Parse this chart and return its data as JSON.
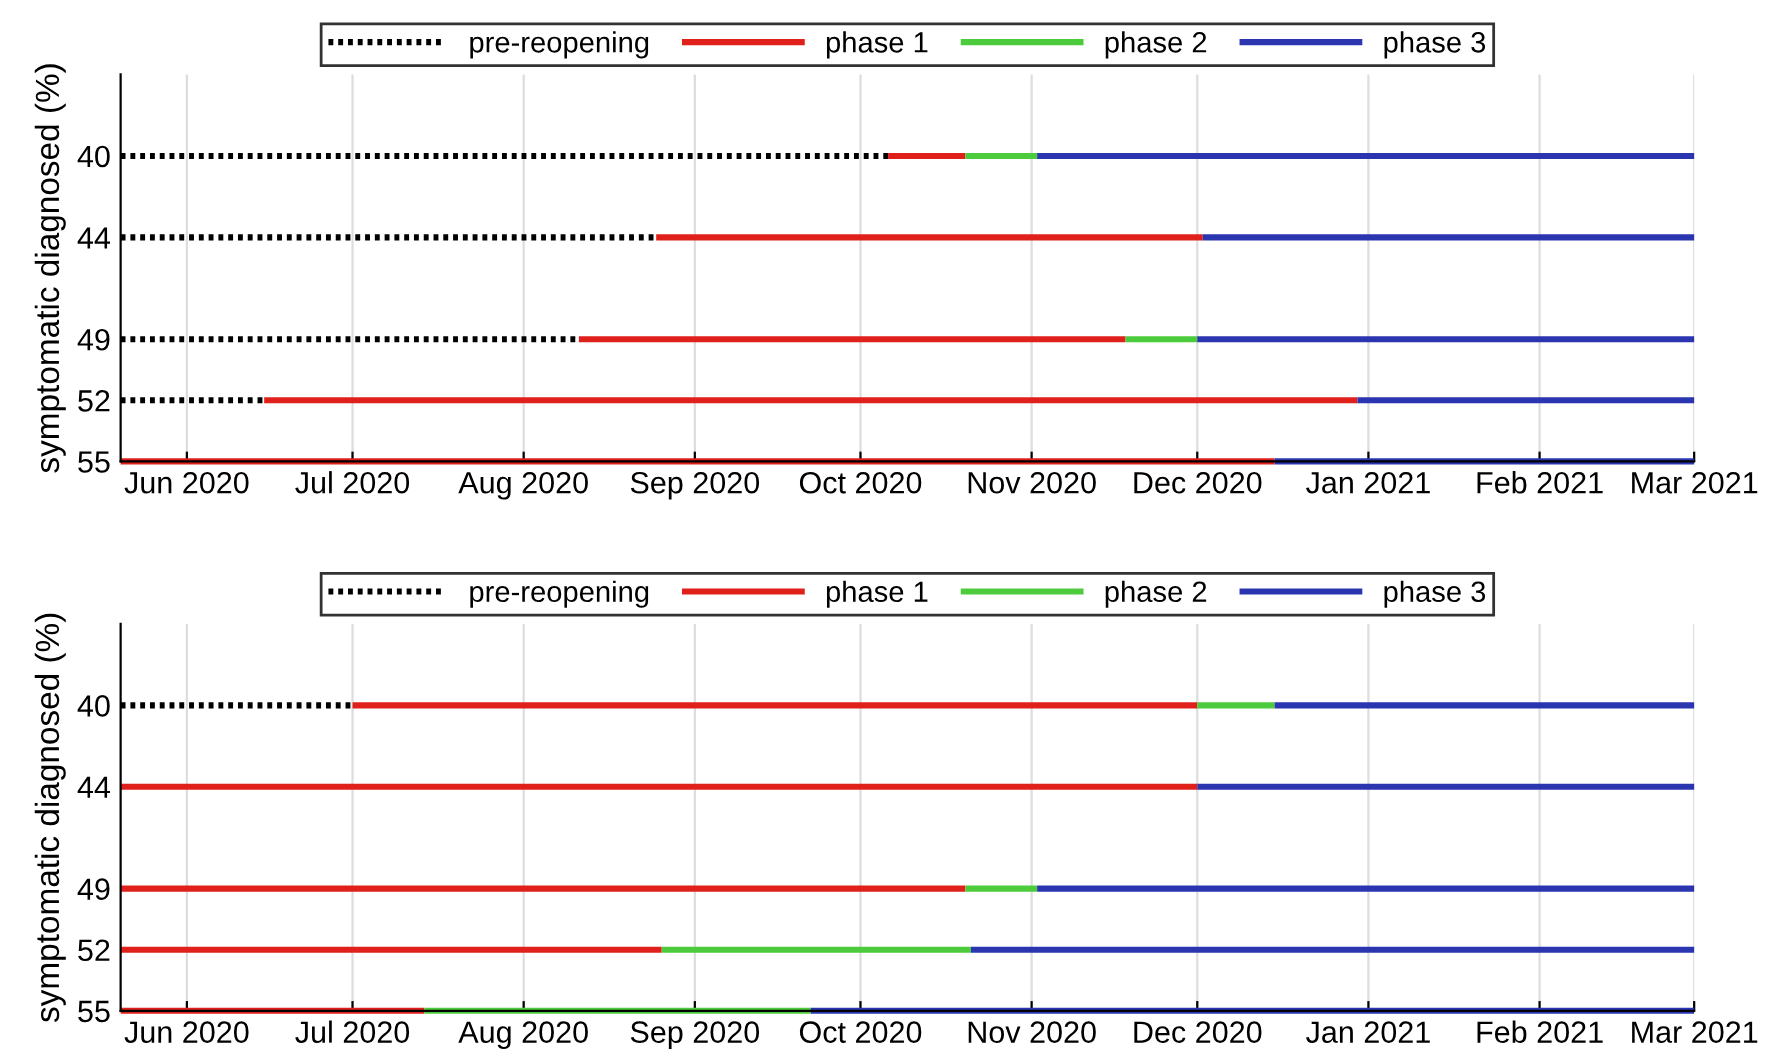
{
  "chart_data": [
    {
      "type": "line",
      "ylabel": "symptomatic diagnosed (%)",
      "xlim": [
        "2020-05-20",
        "2021-03-01"
      ],
      "ylim": [
        55,
        36
      ],
      "yticks": [
        40,
        44,
        49,
        52,
        55
      ],
      "xticks": [
        {
          "value": "2020-06-01",
          "label": "Jun 2020"
        },
        {
          "value": "2020-07-01",
          "label": "Jul 2020"
        },
        {
          "value": "2020-08-01",
          "label": "Aug 2020"
        },
        {
          "value": "2020-09-01",
          "label": "Sep 2020"
        },
        {
          "value": "2020-10-01",
          "label": "Oct 2020"
        },
        {
          "value": "2020-11-01",
          "label": "Nov 2020"
        },
        {
          "value": "2020-12-01",
          "label": "Dec 2020"
        },
        {
          "value": "2021-01-01",
          "label": "Jan 2021"
        },
        {
          "value": "2021-02-01",
          "label": "Feb 2021"
        },
        {
          "value": "2021-03-01",
          "label": "Mar 2021"
        }
      ],
      "grid": "x",
      "legend": "top",
      "series": [
        {
          "name": "pre-reopening",
          "color": "#000000",
          "line_style": "dotted",
          "x": [
            "2020-05-20",
            "2020-10-06",
            null,
            "2020-05-20",
            "2020-08-25",
            null,
            "2020-05-20",
            "2020-08-11",
            null,
            "2020-05-20",
            "2020-06-15"
          ],
          "values": [
            40,
            40,
            null,
            44,
            44,
            null,
            49,
            49,
            null,
            52,
            52
          ]
        },
        {
          "name": "phase 1",
          "color": "#e0201b",
          "line_style": "solid",
          "x": [
            "2020-10-06",
            "2020-10-20",
            null,
            "2020-08-25",
            "2020-12-02",
            null,
            "2020-08-11",
            "2020-11-18",
            null,
            "2020-06-15",
            "2020-12-30",
            null,
            "2020-05-20",
            "2020-12-15"
          ],
          "values": [
            40,
            40,
            null,
            44,
            44,
            null,
            49,
            49,
            null,
            52,
            52,
            null,
            55,
            55
          ]
        },
        {
          "name": "phase 2",
          "color": "#4ccc3c",
          "line_style": "solid",
          "x": [
            "2020-10-20",
            "2020-11-02",
            null,
            "2020-11-18",
            "2020-12-01"
          ],
          "values": [
            40,
            40,
            null,
            49,
            49
          ]
        },
        {
          "name": "phase 3",
          "color": "#2b35b0",
          "line_style": "solid",
          "x": [
            "2020-11-02",
            "2021-03-01",
            null,
            "2020-12-02",
            "2021-03-01",
            null,
            "2020-12-01",
            "2021-03-01",
            null,
            "2020-12-30",
            "2021-03-01",
            null,
            "2020-12-15",
            "2021-03-01"
          ],
          "values": [
            40,
            40,
            null,
            44,
            44,
            null,
            49,
            49,
            null,
            52,
            52,
            null,
            55,
            55
          ]
        }
      ]
    },
    {
      "type": "line",
      "ylabel": "symptomatic diagnosed (%)",
      "xlim": [
        "2020-05-20",
        "2021-03-01"
      ],
      "ylim": [
        55,
        36
      ],
      "yticks": [
        40,
        44,
        49,
        52,
        55
      ],
      "xticks": [
        {
          "value": "2020-06-01",
          "label": "Jun 2020"
        },
        {
          "value": "2020-07-01",
          "label": "Jul 2020"
        },
        {
          "value": "2020-08-01",
          "label": "Aug 2020"
        },
        {
          "value": "2020-09-01",
          "label": "Sep 2020"
        },
        {
          "value": "2020-10-01",
          "label": "Oct 2020"
        },
        {
          "value": "2020-11-01",
          "label": "Nov 2020"
        },
        {
          "value": "2020-12-01",
          "label": "Dec 2020"
        },
        {
          "value": "2021-01-01",
          "label": "Jan 2021"
        },
        {
          "value": "2021-02-01",
          "label": "Feb 2021"
        },
        {
          "value": "2021-03-01",
          "label": "Mar 2021"
        }
      ],
      "grid": "x",
      "legend": "top",
      "series": [
        {
          "name": "pre-reopening",
          "color": "#000000",
          "line_style": "dotted",
          "x": [
            "2020-05-20",
            "2020-07-01"
          ],
          "values": [
            40,
            40
          ]
        },
        {
          "name": "phase 1",
          "color": "#e0201b",
          "line_style": "solid",
          "x": [
            "2020-07-01",
            "2020-12-01",
            null,
            "2020-05-20",
            "2020-12-01",
            null,
            "2020-05-20",
            "2020-10-20",
            null,
            "2020-05-20",
            "2020-08-26",
            null,
            "2020-05-20",
            "2020-07-14"
          ],
          "values": [
            40,
            40,
            null,
            44,
            44,
            null,
            49,
            49,
            null,
            52,
            52,
            null,
            55,
            55
          ]
        },
        {
          "name": "phase 2",
          "color": "#4ccc3c",
          "line_style": "solid",
          "x": [
            "2020-12-01",
            "2020-12-15",
            null,
            "2020-10-20",
            "2020-11-02",
            null,
            "2020-08-26",
            "2020-10-21",
            null,
            "2020-07-14",
            "2020-09-22"
          ],
          "values": [
            40,
            40,
            null,
            49,
            49,
            null,
            52,
            52,
            null,
            55,
            55
          ]
        },
        {
          "name": "phase 3",
          "color": "#2b35b0",
          "line_style": "solid",
          "x": [
            "2020-12-15",
            "2021-03-01",
            null,
            "2020-12-01",
            "2021-03-01",
            null,
            "2020-11-02",
            "2021-03-01",
            null,
            "2020-10-21",
            "2021-03-01",
            null,
            "2020-09-22",
            "2021-03-01"
          ],
          "values": [
            40,
            40,
            null,
            44,
            44,
            null,
            49,
            49,
            null,
            52,
            52,
            null,
            55,
            55
          ]
        }
      ]
    }
  ]
}
